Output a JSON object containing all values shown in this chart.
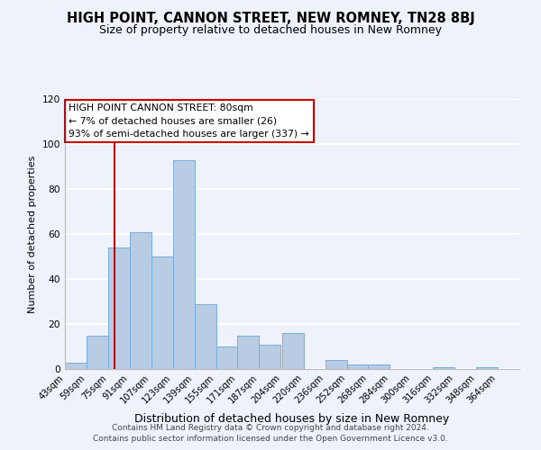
{
  "title": "HIGH POINT, CANNON STREET, NEW ROMNEY, TN28 8BJ",
  "subtitle": "Size of property relative to detached houses in New Romney",
  "xlabel": "Distribution of detached houses by size in New Romney",
  "ylabel": "Number of detached properties",
  "bar_edges": [
    43,
    59,
    75,
    91,
    107,
    123,
    139,
    155,
    171,
    187,
    204,
    220,
    236,
    252,
    268,
    284,
    300,
    316,
    332,
    348,
    364
  ],
  "bar_heights": [
    3,
    15,
    54,
    61,
    50,
    93,
    29,
    10,
    15,
    11,
    16,
    0,
    4,
    2,
    2,
    0,
    0,
    1,
    0,
    1
  ],
  "bar_color": "#b8cce4",
  "bar_edge_color": "#7aacdc",
  "highlight_x": 80,
  "highlight_line_color": "#cc0000",
  "annotation_title": "HIGH POINT CANNON STREET: 80sqm",
  "annotation_line1": "← 7% of detached houses are smaller (26)",
  "annotation_line2": "93% of semi-detached houses are larger (337) →",
  "annotation_box_color": "#ffffff",
  "annotation_box_edge": "#cc0000",
  "ylim": [
    0,
    120
  ],
  "xlim_min": 43,
  "xlim_max": 380,
  "tick_positions": [
    43,
    59,
    75,
    91,
    107,
    123,
    139,
    155,
    171,
    187,
    204,
    220,
    236,
    252,
    268,
    284,
    300,
    316,
    332,
    348,
    364
  ],
  "tick_labels": [
    "43sqm",
    "59sqm",
    "75sqm",
    "91sqm",
    "107sqm",
    "123sqm",
    "139sqm",
    "155sqm",
    "171sqm",
    "187sqm",
    "204sqm",
    "220sqm",
    "236sqm",
    "252sqm",
    "268sqm",
    "284sqm",
    "300sqm",
    "316sqm",
    "332sqm",
    "348sqm",
    "364sqm"
  ],
  "ytick_positions": [
    0,
    20,
    40,
    60,
    80,
    100,
    120
  ],
  "footer1": "Contains HM Land Registry data © Crown copyright and database right 2024.",
  "footer2": "Contains public sector information licensed under the Open Government Licence v3.0.",
  "background_color": "#eef2fa",
  "grid_color": "#ffffff",
  "title_fontsize": 10.5,
  "subtitle_fontsize": 9,
  "xlabel_fontsize": 9,
  "ylabel_fontsize": 8,
  "tick_fontsize": 7.2,
  "footer_fontsize": 6.5
}
